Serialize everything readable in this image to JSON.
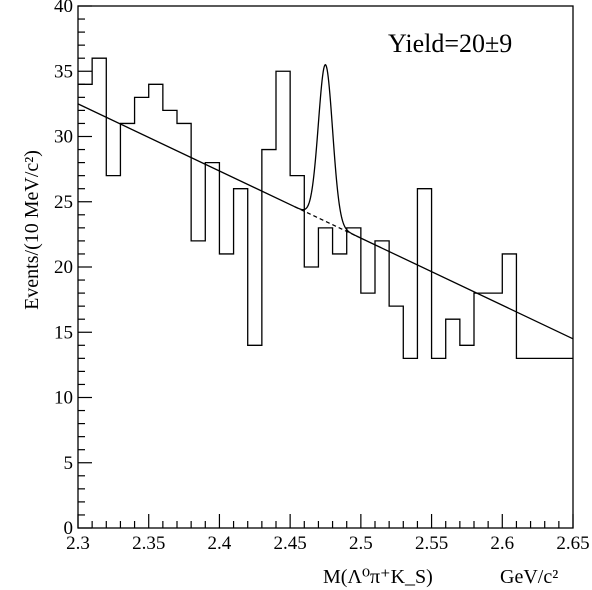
{
  "chart_data": {
    "type": "histogram",
    "title": "",
    "xlabel": "M(Λ⁰π⁺K_S)",
    "xunit": "GeV/c²",
    "ylabel": "Events/(10 MeV/c²)",
    "annotation": "Yield=20±9",
    "xlim": [
      2.3,
      2.65
    ],
    "ylim": [
      0,
      40
    ],
    "xticks": [
      "2.3",
      "2.35",
      "2.4",
      "2.45",
      "2.5",
      "2.55",
      "2.6",
      "2.65"
    ],
    "yticks": [
      "0",
      "5",
      "10",
      "15",
      "20",
      "25",
      "30",
      "35",
      "40"
    ],
    "grid": false,
    "bin_width": 0.01,
    "bin_edges_start": 2.3,
    "bin_counts": [
      34,
      36,
      27,
      31,
      33,
      34,
      32,
      31,
      22,
      28,
      21,
      26,
      14,
      29,
      35,
      27,
      20,
      23,
      21,
      23,
      18,
      22,
      17,
      13,
      26,
      13,
      16,
      14,
      18,
      18,
      21,
      13,
      13,
      13,
      13
    ],
    "fit": {
      "background": {
        "type": "linear",
        "x": [
          2.3,
          2.65
        ],
        "y": [
          32.5,
          14.5
        ]
      },
      "signal": {
        "type": "gaussian",
        "mean": 2.475,
        "peak_height": 35.5,
        "sigma": 0.005
      },
      "dashed_interval": [
        2.453,
        2.5
      ]
    }
  }
}
